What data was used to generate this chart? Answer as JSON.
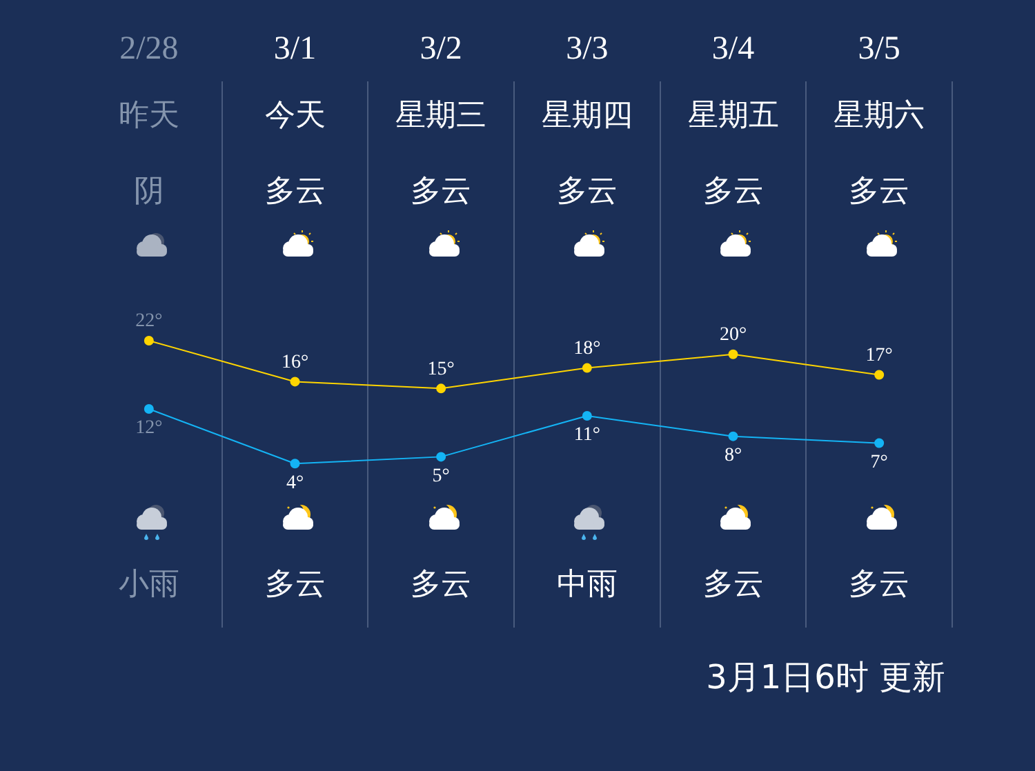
{
  "chart_data": {
    "type": "line",
    "categories": [
      "2/28",
      "3/1",
      "3/2",
      "3/3",
      "3/4",
      "3/5"
    ],
    "series": [
      {
        "color": "#ffd500",
        "values": [
          22,
          16,
          15,
          18,
          20,
          17
        ],
        "value_labels": [
          "22°",
          "16°",
          "15°",
          "18°",
          "20°",
          "17°"
        ]
      },
      {
        "color": "#14b4f5",
        "values": [
          12,
          4,
          5,
          11,
          8,
          7
        ],
        "value_labels": [
          "12°",
          "4°",
          "5°",
          "11°",
          "8°",
          "7°"
        ]
      }
    ],
    "marker": "circle",
    "grid": "x",
    "legend": false,
    "annotations": [
      "昨天",
      "今天",
      "星期三",
      "星期四",
      "星期五",
      "星期六",
      "阴",
      "多云",
      "多云",
      "多云",
      "多云",
      "多云",
      "小雨",
      "多云",
      "多云",
      "中雨",
      "多云",
      "多云",
      "3月1日6时 更新"
    ]
  }
}
